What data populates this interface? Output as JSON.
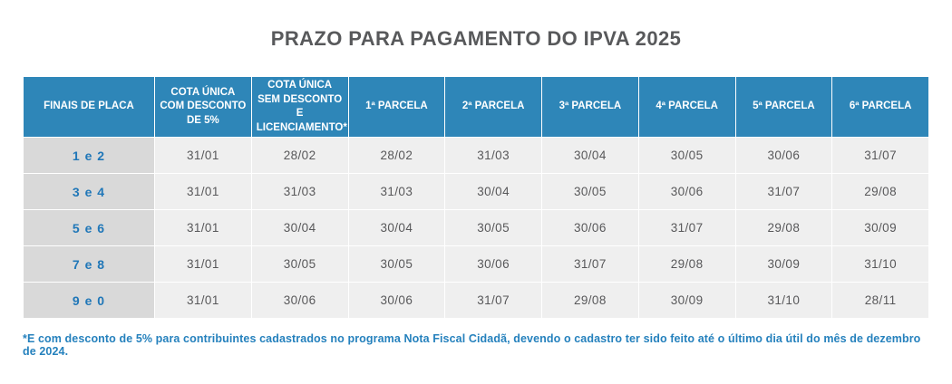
{
  "title": "PRAZO PARA PAGAMENTO DO IPVA 2025",
  "chart_data": {
    "type": "table",
    "title": "PRAZO PARA PAGAMENTO DO IPVA 2025",
    "columns": [
      "FINAIS DE PLACA",
      "COTA ÚNICA COM DESCONTO DE 5%",
      "COTA ÚNICA SEM DESCONTO E LICENCIAMENTO*",
      "1ª PARCELA",
      "2ª PARCELA",
      "3ª PARCELA",
      "4ª PARCELA",
      "5ª PARCELA",
      "6ª PARCELA"
    ],
    "rows": [
      [
        "1 e 2",
        "31/01",
        "28/02",
        "28/02",
        "31/03",
        "30/04",
        "30/05",
        "30/06",
        "31/07"
      ],
      [
        "3 e 4",
        "31/01",
        "31/03",
        "31/03",
        "30/04",
        "30/05",
        "30/06",
        "31/07",
        "29/08"
      ],
      [
        "5 e 6",
        "31/01",
        "30/04",
        "30/04",
        "30/05",
        "30/06",
        "31/07",
        "29/08",
        "30/09"
      ],
      [
        "7 e 8",
        "31/01",
        "30/05",
        "30/05",
        "30/06",
        "31/07",
        "29/08",
        "30/09",
        "31/10"
      ],
      [
        "9 e 0",
        "31/01",
        "30/06",
        "30/06",
        "31/07",
        "29/08",
        "30/09",
        "31/10",
        "28/11"
      ]
    ],
    "legend_position": "none",
    "grid": "white-separators"
  },
  "footnote": "*E com desconto de 5% para contribuintes cadastrados no programa Nota Fiscal Cidadã, devendo o cadastro ter sido feito até o último dia útil do mês de dezembro de 2024.",
  "colors": {
    "header_bg": "#2E86B8",
    "label_bg": "#D9D9D9",
    "cell_bg": "#EFEFEF",
    "label_text": "#2077B8",
    "cell_text": "#58585A",
    "title_text": "#58595B",
    "footnote_text": "#2581BD"
  }
}
